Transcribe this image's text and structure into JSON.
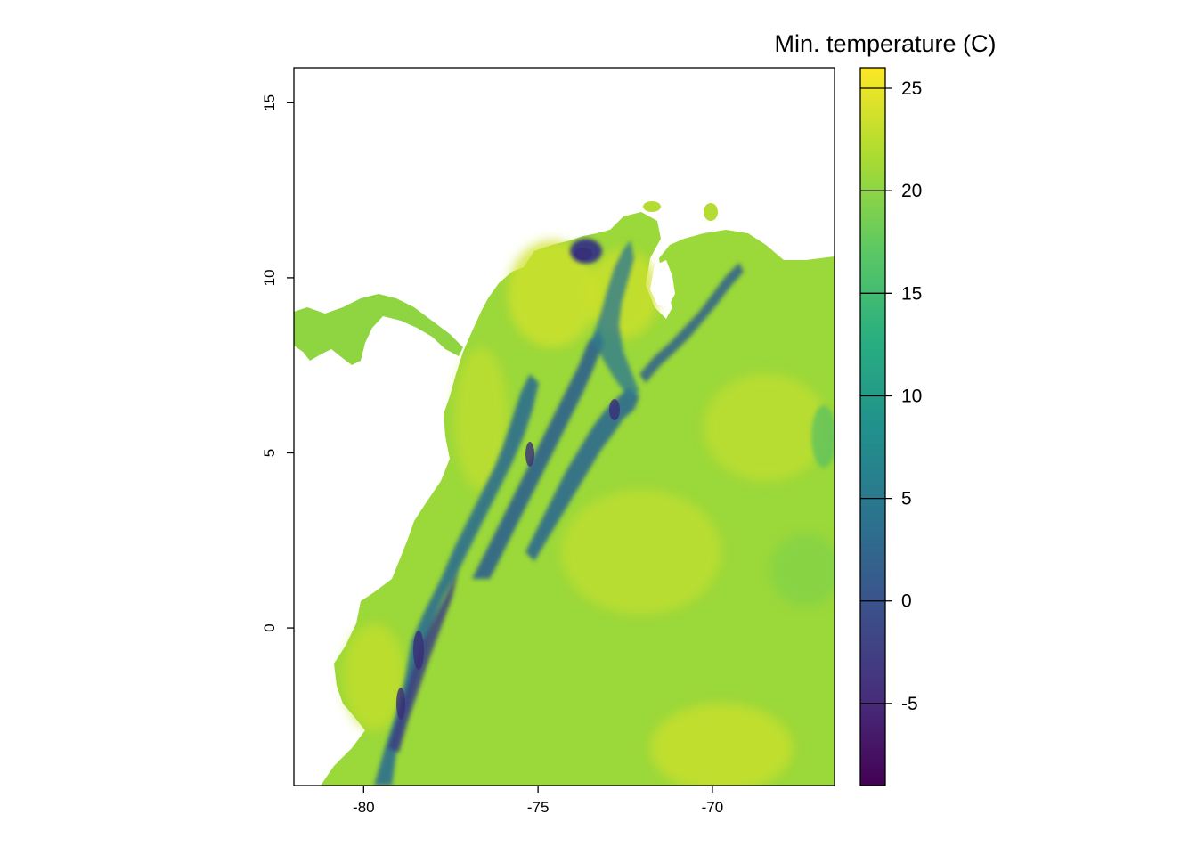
{
  "map": {
    "type": "raster",
    "x_axis": {
      "range": [
        -82,
        -66.5
      ],
      "ticks": [
        -80,
        -75,
        -70
      ]
    },
    "y_axis": {
      "range": [
        -4.5,
        16
      ],
      "ticks": [
        0,
        5,
        10,
        15
      ]
    }
  },
  "legend": {
    "title": "Min. temperature (C)",
    "range": [
      -9,
      26
    ],
    "ticks": [
      -5,
      0,
      5,
      10,
      15,
      20,
      25
    ],
    "palette": [
      "#440154",
      "#472d7b",
      "#3b528b",
      "#2c728e",
      "#21918c",
      "#28ae80",
      "#5ec962",
      "#addc30",
      "#fde725"
    ]
  },
  "colors": {
    "land_hot": "#cfe12a",
    "land_warm": "#9bd83a",
    "mountain_cold": "#2f5d8c",
    "mountain_peak": "#3b2f7a"
  }
}
